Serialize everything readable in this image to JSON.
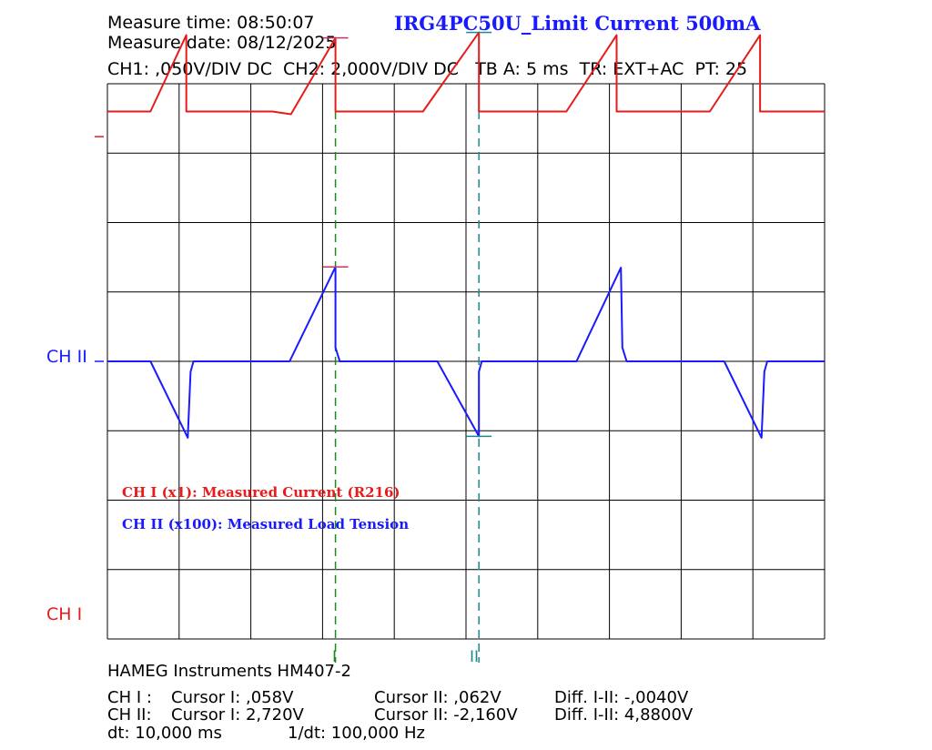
{
  "header": {
    "measure_time": "Measure time: 08:50:07",
    "measure_date": "Measure date: 08/12/2025",
    "title": "IRG4PC50U_Limit Current 500mA",
    "settings": "CH1: ,050V/DIV DC  CH2: 2,000V/DIV DC   TB A: 5 ms  TR: EXT+AC  PT: 25"
  },
  "channel_labels": {
    "ch2": "CH II",
    "ch1": "CH I"
  },
  "cursor_labels": {
    "c1": "I",
    "c2": "II"
  },
  "legend": {
    "ch1": "CH I (x1): Measured Current (R216)",
    "ch2": "CH II (x100): Measured Load Tension"
  },
  "footer": {
    "brand": "HAMEG Instruments HM407-2",
    "ch1_row": {
      "name": "CH I :",
      "cursor1": "Cursor I: ,058V",
      "cursor2": "Cursor II: ,062V",
      "diff": "Diff. I-II: -,0040V"
    },
    "ch2_row": {
      "name": "CH II:",
      "cursor1": "Cursor I: 2,720V",
      "cursor2": "Cursor II: -2,160V",
      "diff": "Diff. I-II: 4,8800V"
    },
    "dt": "dt: 10,000 ms",
    "inv_dt": "1/dt: 100,000 Hz"
  },
  "colors": {
    "ch1": "#e51c1c",
    "ch2": "#1a1aff",
    "cursor1": "#1a8c1a",
    "cursor2": "#1a8c8c",
    "cursor_marker": "#cc3366",
    "grid": "#000000"
  },
  "chart_data": {
    "type": "line",
    "title": "IRG4PC50U_Limit Current 500mA",
    "xlabel": "",
    "ylabel": "",
    "grid": true,
    "x_unit": "ms",
    "xlim": [
      0,
      50
    ],
    "divisions": {
      "x": 10,
      "y": 8
    },
    "time_per_div_ms": 5,
    "series": [
      {
        "name": "CH I (x1): Measured Current (R216)",
        "unit": "V",
        "volts_per_div": 0.05,
        "reference_div": 0.5,
        "x": [
          0,
          3,
          5.5,
          5.5,
          11.5,
          12.8,
          15.9,
          15.9,
          22.0,
          25.9,
          25.9,
          32.0,
          35.5,
          35.5,
          42.0,
          45.5,
          45.5,
          50
        ],
        "values": [
          0.005,
          0.005,
          0.06,
          0.005,
          0.005,
          0.003,
          0.058,
          0.005,
          0.005,
          0.062,
          0.005,
          0.005,
          0.06,
          0.005,
          0.005,
          0.06,
          0.005,
          0.005
        ]
      },
      {
        "name": "CH II (x100): Measured Load Tension",
        "unit": "V",
        "volts_per_div": 2.0,
        "reference_div": 4.0,
        "x": [
          0,
          3,
          5.6,
          5.8,
          6.0,
          12.7,
          15.9,
          15.9,
          16.2,
          23.0,
          25.9,
          25.9,
          26.1,
          32.7,
          35.8,
          35.9,
          36.2,
          43.0,
          45.6,
          45.8,
          46.0,
          50
        ],
        "values": [
          0,
          0,
          -2.2,
          -0.3,
          0,
          0,
          2.72,
          0.4,
          0,
          0,
          -2.16,
          -0.3,
          0,
          0,
          2.7,
          0.4,
          0,
          0,
          -2.2,
          -0.3,
          0,
          0
        ]
      }
    ],
    "cursors": [
      {
        "label": "I",
        "x": 15.9,
        "ch1": 0.058,
        "ch2": 2.72
      },
      {
        "label": "II",
        "x": 25.9,
        "ch1": 0.062,
        "ch2": -2.16
      }
    ]
  }
}
